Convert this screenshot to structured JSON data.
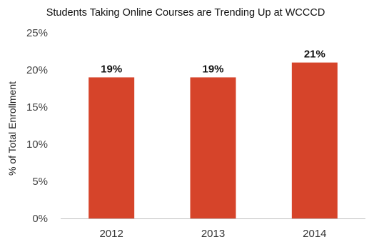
{
  "chart_data": {
    "type": "bar",
    "title": "Students Taking Online Courses are Trending Up at WCCCD",
    "xlabel": "",
    "ylabel": "% of Total Enrollment",
    "categories": [
      "2012",
      "2013",
      "2014"
    ],
    "values": [
      19,
      19,
      21
    ],
    "data_labels": [
      "19%",
      "19%",
      "21%"
    ],
    "ylim": [
      0,
      25
    ],
    "yticks": [
      0,
      5,
      10,
      15,
      20,
      25
    ],
    "ytick_labels": [
      "0%",
      "5%",
      "10%",
      "15%",
      "20%",
      "25%"
    ],
    "bar_color": "#d6442a",
    "axis_color": "#bfbfbf",
    "grid": false,
    "legend": "none"
  }
}
